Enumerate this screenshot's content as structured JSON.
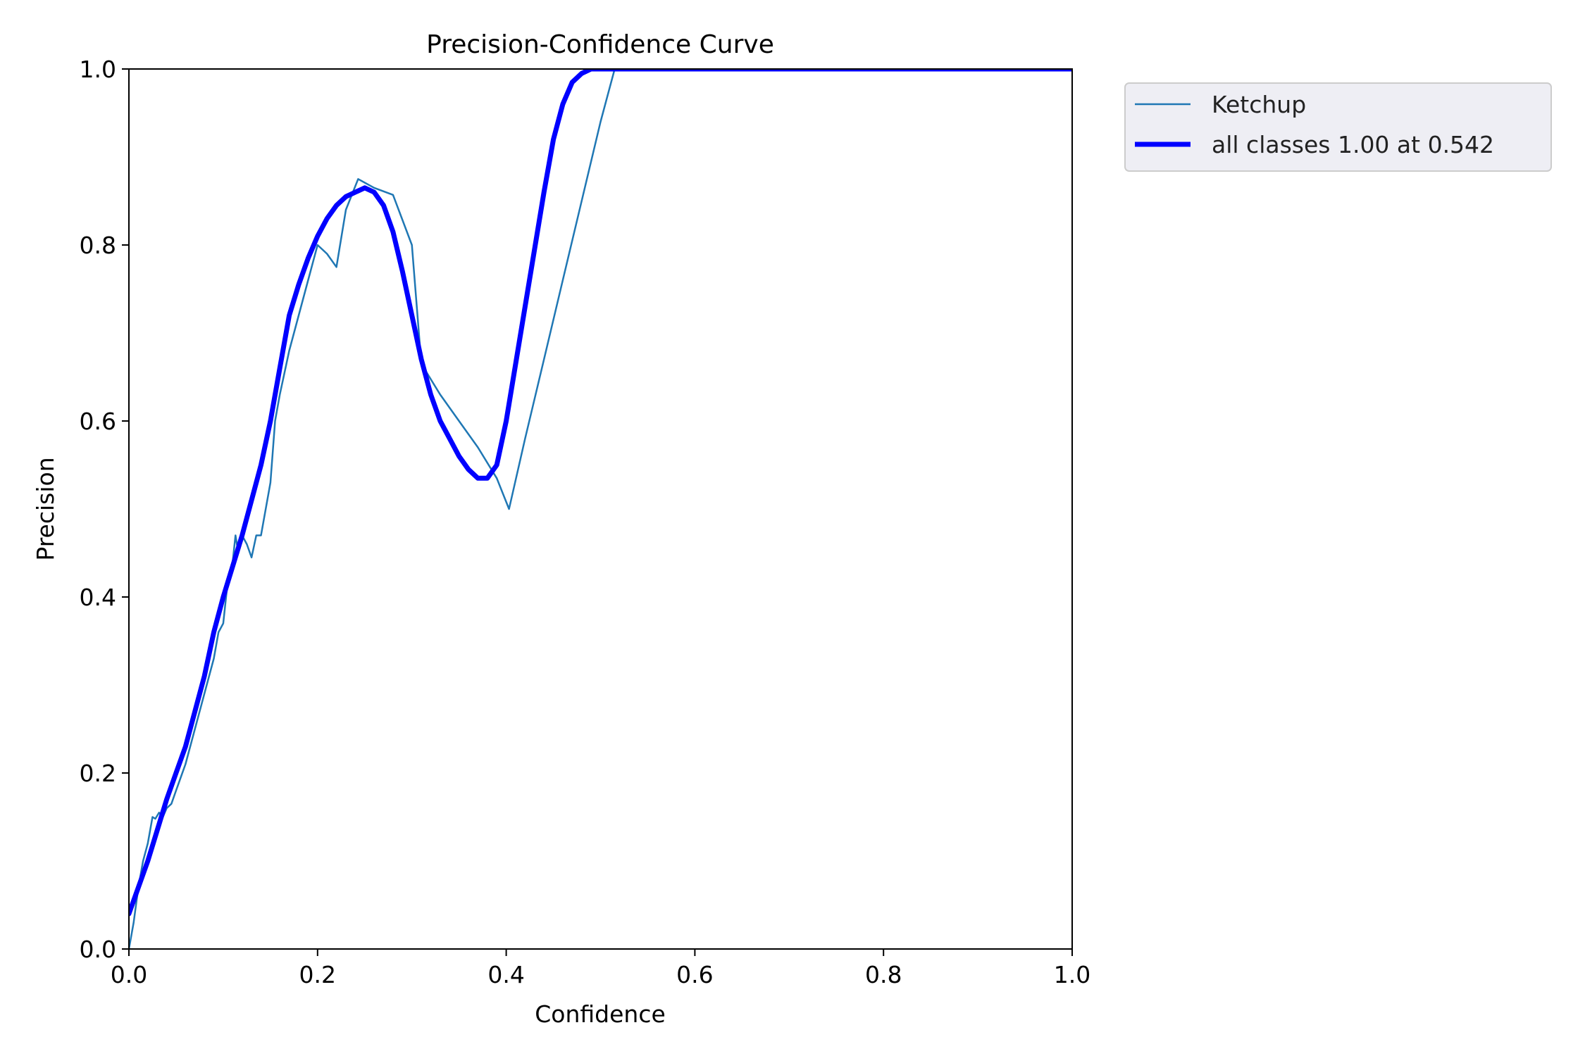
{
  "chart_data": {
    "type": "line",
    "title": "Precision-Confidence Curve",
    "xlabel": "Confidence",
    "ylabel": "Precision",
    "xlim": [
      0,
      1
    ],
    "ylim": [
      0,
      1
    ],
    "xticks": [
      0.0,
      0.2,
      0.4,
      0.6,
      0.8,
      1.0
    ],
    "yticks": [
      0.0,
      0.2,
      0.4,
      0.6,
      0.8,
      1.0
    ],
    "xtick_labels": [
      "0.0",
      "0.2",
      "0.4",
      "0.6",
      "0.8",
      "1.0"
    ],
    "ytick_labels": [
      "0.0",
      "0.2",
      "0.4",
      "0.6",
      "0.8",
      "1.0"
    ],
    "grid": false,
    "legend_position": "outside-top-right",
    "series": [
      {
        "name": "Ketchup",
        "color": "#1f77b4",
        "x": [
          0.0,
          0.005,
          0.01,
          0.015,
          0.02,
          0.025,
          0.028,
          0.032,
          0.036,
          0.04,
          0.045,
          0.05,
          0.06,
          0.07,
          0.08,
          0.09,
          0.095,
          0.1,
          0.105,
          0.11,
          0.113,
          0.116,
          0.12,
          0.125,
          0.13,
          0.135,
          0.14,
          0.15,
          0.155,
          0.16,
          0.17,
          0.18,
          0.19,
          0.2,
          0.21,
          0.22,
          0.23,
          0.243,
          0.26,
          0.28,
          0.3,
          0.31,
          0.33,
          0.35,
          0.37,
          0.39,
          0.403,
          0.42,
          0.44,
          0.46,
          0.48,
          0.5,
          0.515,
          0.53,
          0.6,
          0.7,
          0.8,
          0.9,
          1.0
        ],
        "values": [
          0.0,
          0.03,
          0.07,
          0.1,
          0.12,
          0.15,
          0.148,
          0.155,
          0.15,
          0.16,
          0.165,
          0.18,
          0.21,
          0.25,
          0.29,
          0.33,
          0.36,
          0.37,
          0.42,
          0.44,
          0.47,
          0.45,
          0.47,
          0.46,
          0.445,
          0.47,
          0.47,
          0.53,
          0.6,
          0.63,
          0.68,
          0.72,
          0.76,
          0.8,
          0.79,
          0.775,
          0.84,
          0.875,
          0.865,
          0.857,
          0.8,
          0.665,
          0.63,
          0.6,
          0.57,
          0.535,
          0.5,
          0.58,
          0.67,
          0.76,
          0.85,
          0.94,
          1.0,
          1.0,
          1.0,
          1.0,
          1.0,
          1.0,
          1.0
        ]
      },
      {
        "name": "all classes 1.00 at 0.542",
        "color": "#0000ff",
        "x": [
          0.0,
          0.01,
          0.02,
          0.03,
          0.04,
          0.05,
          0.06,
          0.07,
          0.08,
          0.09,
          0.1,
          0.11,
          0.12,
          0.13,
          0.14,
          0.15,
          0.16,
          0.17,
          0.18,
          0.19,
          0.2,
          0.21,
          0.22,
          0.23,
          0.24,
          0.25,
          0.26,
          0.27,
          0.28,
          0.29,
          0.3,
          0.31,
          0.32,
          0.33,
          0.34,
          0.35,
          0.36,
          0.37,
          0.38,
          0.39,
          0.4,
          0.41,
          0.42,
          0.43,
          0.44,
          0.45,
          0.46,
          0.47,
          0.48,
          0.49,
          0.5,
          0.51,
          0.52,
          0.53,
          0.542,
          0.6,
          0.7,
          0.8,
          0.9,
          1.0
        ],
        "values": [
          0.04,
          0.07,
          0.1,
          0.135,
          0.17,
          0.2,
          0.23,
          0.27,
          0.31,
          0.36,
          0.4,
          0.435,
          0.47,
          0.51,
          0.55,
          0.6,
          0.66,
          0.72,
          0.755,
          0.785,
          0.81,
          0.83,
          0.845,
          0.855,
          0.86,
          0.865,
          0.86,
          0.845,
          0.815,
          0.77,
          0.72,
          0.67,
          0.63,
          0.6,
          0.58,
          0.56,
          0.545,
          0.535,
          0.535,
          0.55,
          0.6,
          0.665,
          0.73,
          0.795,
          0.86,
          0.92,
          0.96,
          0.985,
          0.995,
          1.0,
          1.0,
          1.0,
          1.0,
          1.0,
          1.0,
          1.0,
          1.0,
          1.0,
          1.0,
          1.0
        ]
      }
    ]
  }
}
